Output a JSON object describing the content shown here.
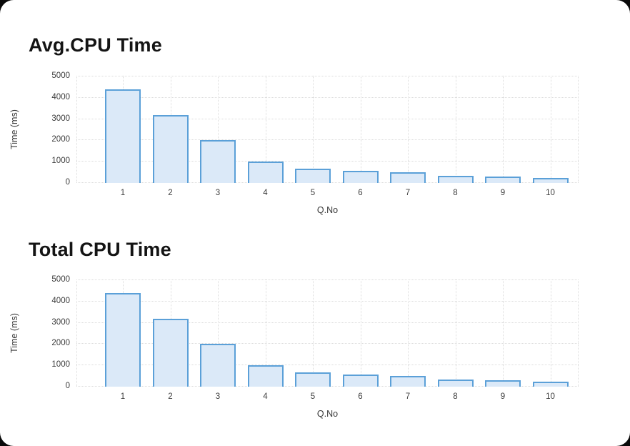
{
  "page": {
    "background_color": "#0a0a0a",
    "card_color": "#ffffff"
  },
  "chart_data": [
    {
      "type": "bar",
      "title": "Avg.CPU Time",
      "xlabel": "Q.No",
      "ylabel": "Time (ms)",
      "categories": [
        "1",
        "2",
        "3",
        "4",
        "5",
        "6",
        "7",
        "8",
        "9",
        "10"
      ],
      "values": [
        4400,
        3180,
        2000,
        1010,
        680,
        560,
        500,
        350,
        300,
        250
      ],
      "ylim": [
        0,
        5000
      ],
      "ytick_step": 1000,
      "grid": "dotted",
      "legend": "none",
      "bar_fill": "#dbe9f8",
      "bar_border": "#5ba0d8",
      "gridline_color": "#dcdcdc"
    },
    {
      "type": "bar",
      "title": "Total CPU Time",
      "xlabel": "Q.No",
      "ylabel": "Time (ms)",
      "categories": [
        "1",
        "2",
        "3",
        "4",
        "5",
        "6",
        "7",
        "8",
        "9",
        "10"
      ],
      "values": [
        4400,
        3180,
        2000,
        1010,
        680,
        560,
        500,
        350,
        300,
        250
      ],
      "ylim": [
        0,
        5000
      ],
      "ytick_step": 1000,
      "grid": "dotted",
      "legend": "none",
      "bar_fill": "#dbe9f8",
      "bar_border": "#5ba0d8",
      "gridline_color": "#dcdcdc"
    }
  ]
}
